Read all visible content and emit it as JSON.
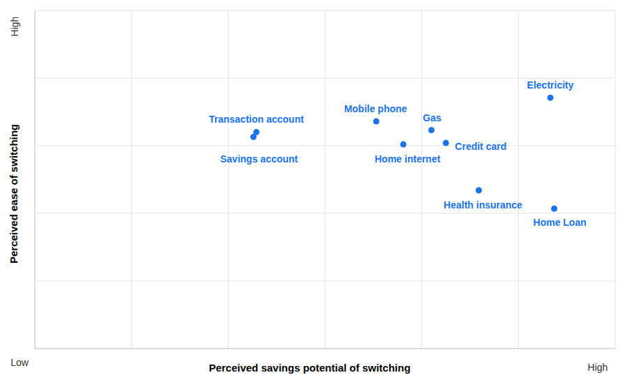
{
  "chart_data": {
    "type": "scatter",
    "xlabel": "Perceived savings potential of switching",
    "ylabel": "Perceived ease of switching",
    "annotations": [
      "Low",
      "High",
      "High"
    ],
    "categories": [
      "Transaction account",
      "Savings account",
      "Mobile phone",
      "Home internet",
      "Gas",
      "Credit card",
      "Health insurance",
      "Electricity",
      "Home Loan"
    ],
    "x": [
      2.29,
      2.26,
      3.53,
      3.81,
      4.1,
      4.25,
      4.59,
      5.33,
      5.37
    ],
    "values": [
      3.2,
      3.13,
      3.36,
      3.02,
      3.23,
      3.04,
      2.34,
      3.71,
      2.07
    ],
    "color": "#1a73e8",
    "marker": "circle",
    "xlim": [
      0,
      6
    ],
    "xticks": [
      0,
      1,
      2,
      3,
      4,
      5,
      6
    ],
    "ylim": [
      0,
      5
    ],
    "yticks": [
      0,
      1,
      2,
      3,
      4,
      5
    ],
    "grid": true,
    "tick_labels": false
  }
}
